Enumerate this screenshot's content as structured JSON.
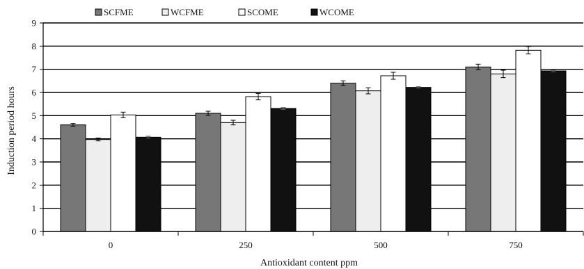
{
  "chart_data": {
    "type": "bar",
    "xlabel": "Antioxidant content ppm",
    "ylabel": "Induction period hours",
    "categories": [
      "0",
      "250",
      "500",
      "750"
    ],
    "ylim": [
      0,
      9
    ],
    "yticks": [
      0,
      1,
      2,
      3,
      4,
      5,
      6,
      7,
      8,
      9
    ],
    "grid": true,
    "error_bars": true,
    "legend_position": "top",
    "series": [
      {
        "name": "SCFME",
        "color": "#777777",
        "values": [
          4.6,
          5.1,
          6.4,
          7.1
        ],
        "errors": [
          0.06,
          0.09,
          0.1,
          0.12
        ]
      },
      {
        "name": "WCFME",
        "color": "#eeeeee",
        "values": [
          3.97,
          4.7,
          6.07,
          6.8
        ],
        "errors": [
          0.06,
          0.1,
          0.13,
          0.16
        ]
      },
      {
        "name": "SCOME",
        "color": "#ffffff",
        "values": [
          5.03,
          5.82,
          6.72,
          7.82
        ],
        "errors": [
          0.12,
          0.14,
          0.15,
          0.16
        ]
      },
      {
        "name": "WCOME",
        "color": "#111111",
        "values": [
          4.07,
          5.31,
          6.22,
          6.93
        ],
        "errors": [
          0.04,
          0.04,
          0.03,
          0.04
        ]
      }
    ]
  }
}
